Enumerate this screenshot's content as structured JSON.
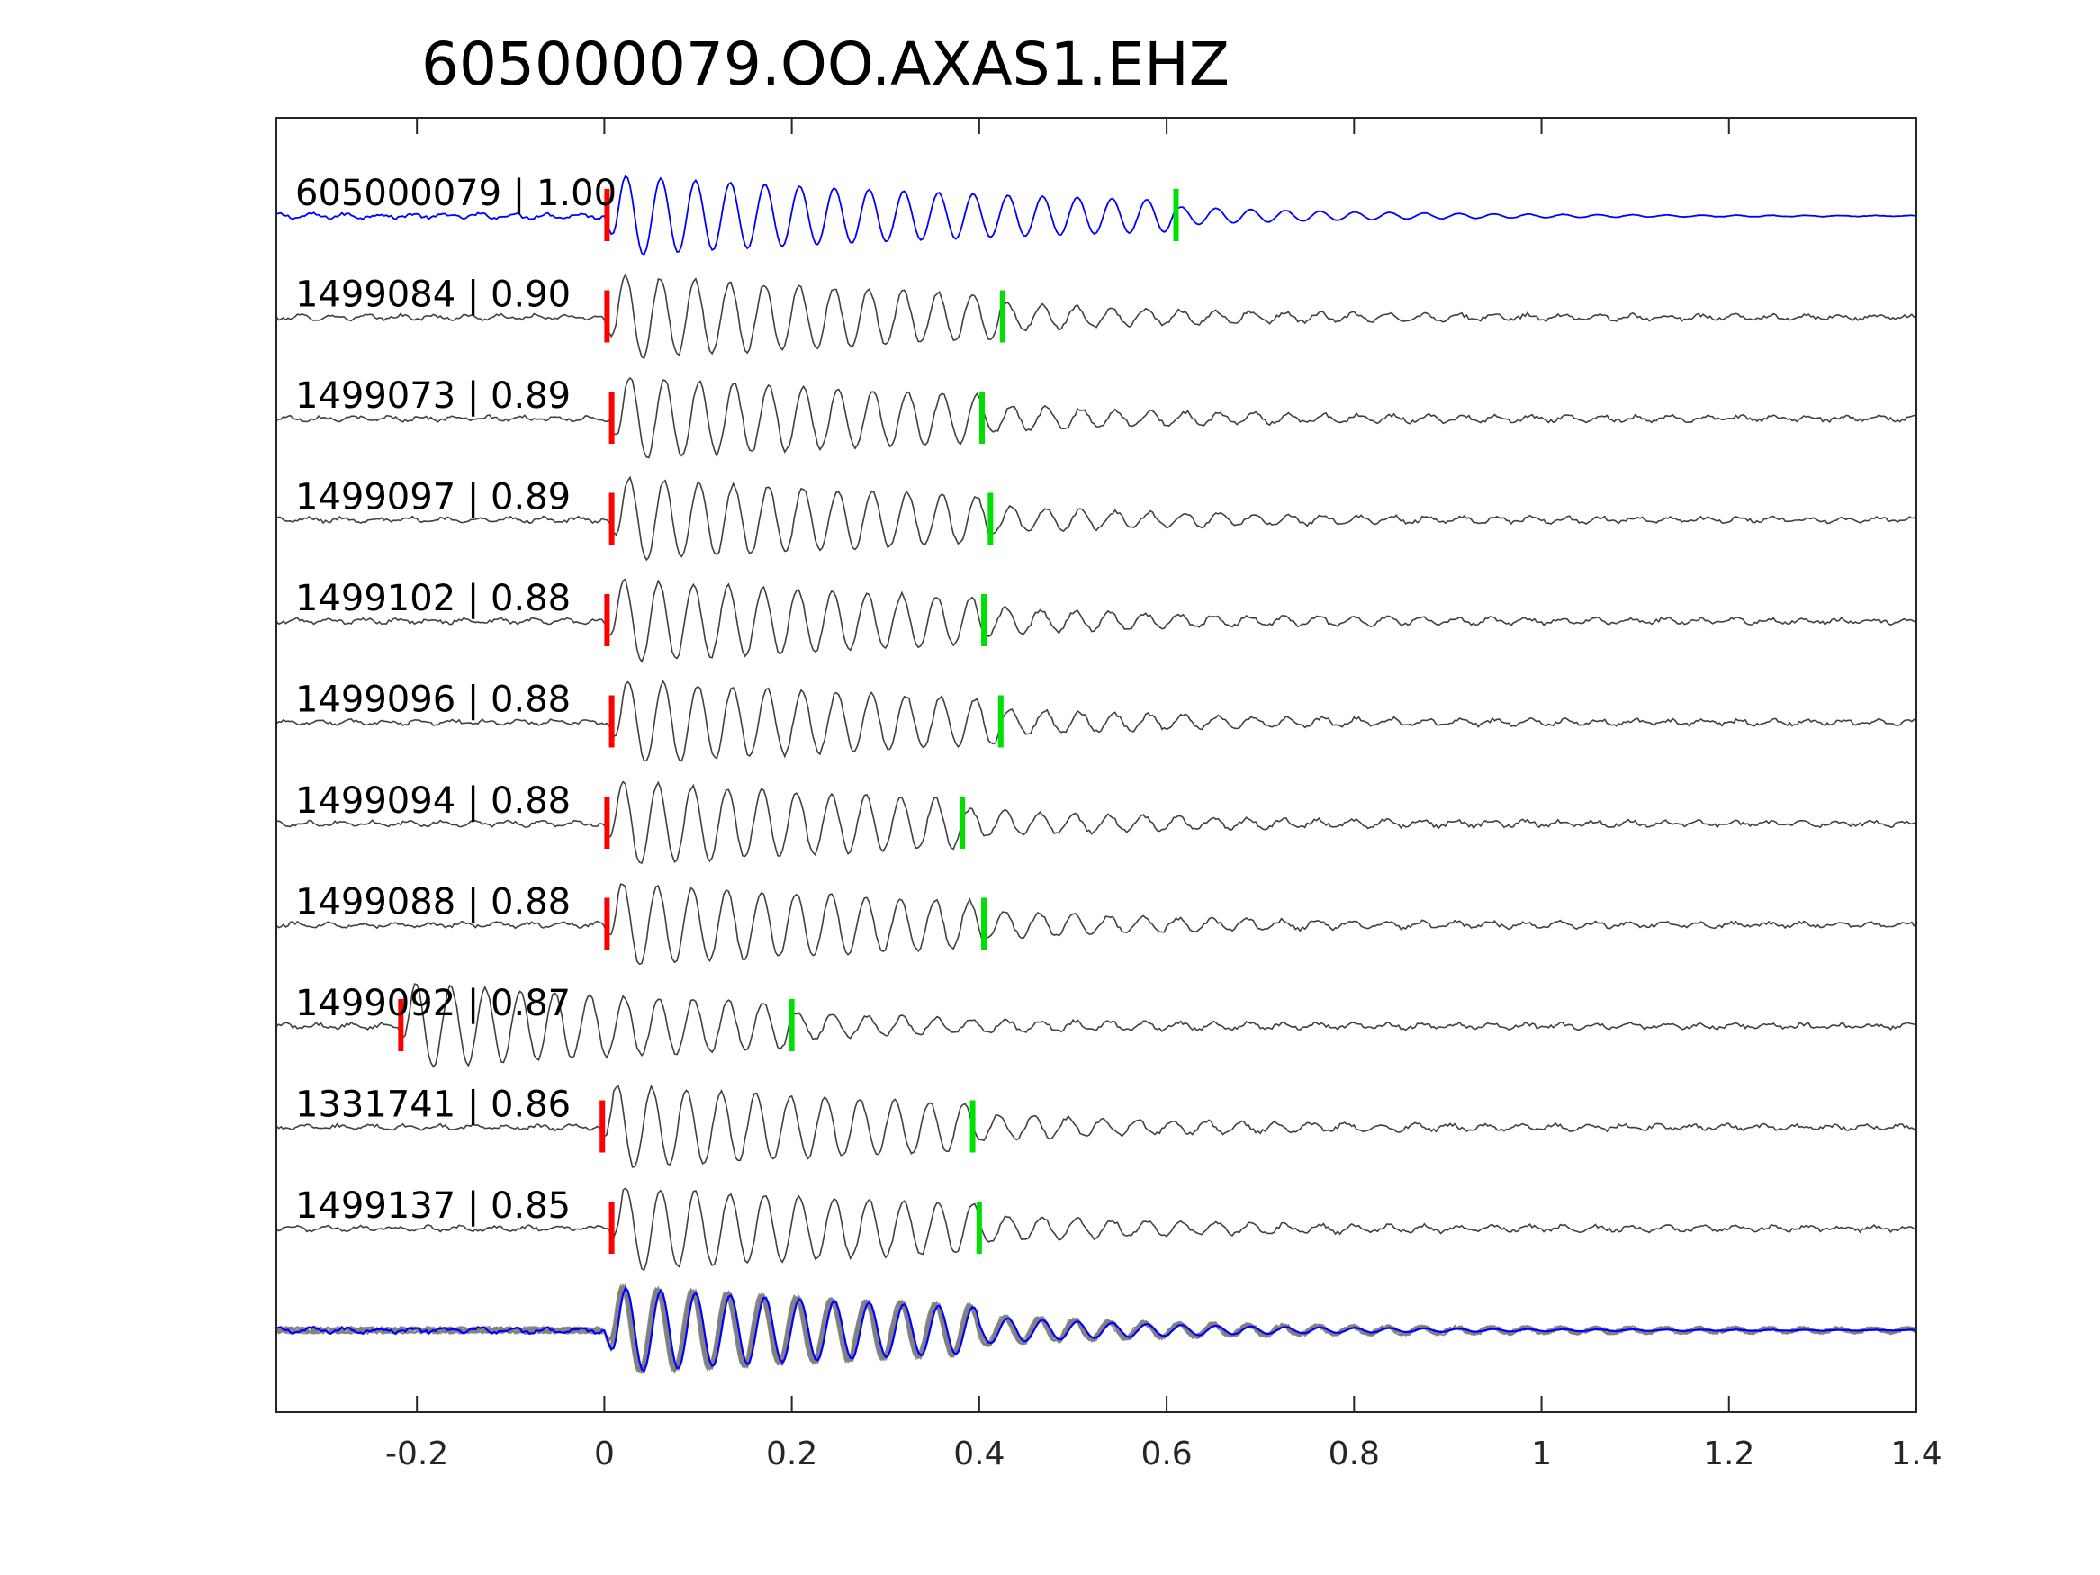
{
  "chart_data": {
    "type": "line",
    "title": "605000079.OO.AXAS1.EHZ",
    "xlabel": "",
    "ylabel": "",
    "xlim": [
      -0.35,
      1.4
    ],
    "xticks": [
      -0.2,
      0,
      0.2,
      0.4,
      0.6,
      0.8,
      1,
      1.2,
      1.4
    ],
    "xtick_labels": [
      "-0.2",
      "0",
      "0.2",
      "0.4",
      "0.6",
      "0.8",
      "1",
      "1.2",
      "1.4"
    ],
    "grid": false,
    "legend": "none",
    "colors": {
      "template": "#0000ff",
      "detection": "#404040",
      "stack": "#808080",
      "p_pick": "#ff0000",
      "s_pick": "#00e000",
      "axis": "#262626"
    },
    "series": [
      {
        "label": "605000079 | 1.00",
        "p_pick": 0.0,
        "s_pick": 0.61
      },
      {
        "label": "1499084 | 0.90",
        "p_pick": 0.0,
        "s_pick": 0.425
      },
      {
        "label": "1499073 | 0.89",
        "p_pick": 0.005,
        "s_pick": 0.403
      },
      {
        "label": "1499097 | 0.89",
        "p_pick": 0.005,
        "s_pick": 0.412
      },
      {
        "label": "1499102 | 0.88",
        "p_pick": 0.0,
        "s_pick": 0.405
      },
      {
        "label": "1499096 | 0.88",
        "p_pick": 0.005,
        "s_pick": 0.423
      },
      {
        "label": "1499094 | 0.88",
        "p_pick": 0.0,
        "s_pick": 0.382
      },
      {
        "label": "1499088 | 0.88",
        "p_pick": 0.0,
        "s_pick": 0.405
      },
      {
        "label": "1499092 | 0.87",
        "p_pick": -0.22,
        "s_pick": 0.2
      },
      {
        "label": "1331741 | 0.86",
        "p_pick": -0.005,
        "s_pick": 0.393
      },
      {
        "label": "1499137 | 0.85",
        "p_pick": 0.005,
        "s_pick": 0.4
      }
    ],
    "stack": {
      "members": 11,
      "includes_template": true
    }
  }
}
